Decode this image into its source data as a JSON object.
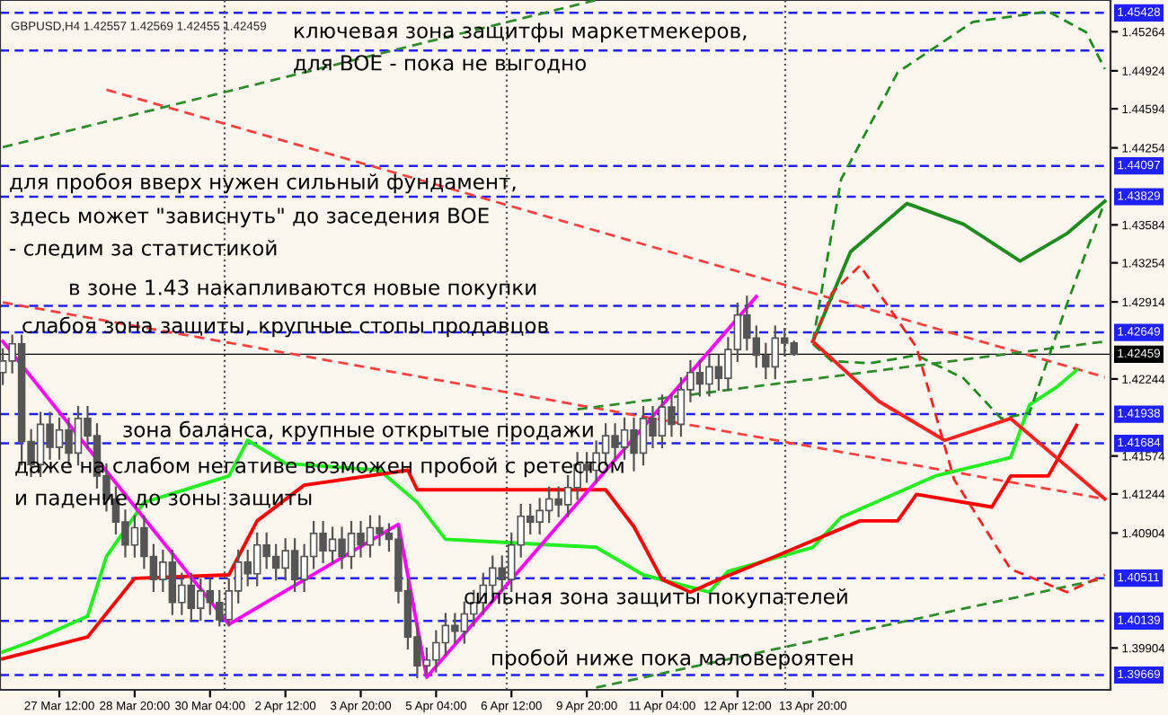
{
  "chart_data": {
    "type": "candlestick",
    "title": "GBPUSD,H4 1.42557 1.42569 1.42455 1.42459",
    "color": "#555555",
    "categories": [
      null,
      null,
      null,
      null,
      null,
      null,
      "27 Mar 12:00",
      null,
      null,
      null,
      null,
      null,
      null,
      null,
      "28 Mar 20:00",
      null,
      null,
      null,
      null,
      null,
      null,
      null,
      "30 Mar 04:00",
      null,
      null,
      null,
      null,
      null,
      null,
      null,
      "2 Apr 12:00",
      null,
      null,
      null,
      null,
      null,
      null,
      null,
      "3 Apr 20:00",
      null,
      null,
      null,
      null,
      null,
      null,
      null,
      "5 Apr 04:00",
      null,
      null,
      null,
      null,
      null,
      null,
      null,
      "6 Apr 12:00",
      null,
      null,
      null,
      null,
      null,
      null,
      null,
      "9 Apr 20:00",
      null,
      null,
      null,
      null,
      null,
      null,
      null,
      "11 Apr 04:00",
      null,
      null,
      null,
      null,
      null,
      null,
      null,
      "12 Apr 12:00",
      null,
      null,
      null,
      null,
      null,
      null,
      null,
      "13 Apr 20:00",
      null,
      null,
      null,
      null,
      null,
      null,
      null,
      null,
      null,
      null,
      null,
      null,
      null,
      null,
      null,
      null,
      null,
      null,
      null,
      null,
      null,
      null,
      null,
      null,
      null,
      null,
      null,
      null,
      null,
      null,
      null
    ],
    "ohlc": [
      [
        1.423,
        1.425,
        1.422,
        1.424
      ],
      [
        1.424,
        1.4262,
        1.423,
        1.4255
      ],
      [
        1.4255,
        1.4262,
        1.415,
        1.417
      ],
      [
        1.417,
        1.418,
        1.414,
        1.415
      ],
      [
        1.415,
        1.4195,
        1.414,
        1.4185
      ],
      [
        1.4185,
        1.4195,
        1.4155,
        1.4165
      ],
      [
        1.4165,
        1.419,
        1.4155,
        1.418
      ],
      [
        1.418,
        1.419,
        1.415,
        1.416
      ],
      [
        1.416,
        1.42,
        1.415,
        1.419
      ],
      [
        1.419,
        1.42,
        1.4165,
        1.4175
      ],
      [
        1.4175,
        1.4185,
        1.413,
        1.414
      ],
      [
        1.414,
        1.415,
        1.411,
        1.412
      ],
      [
        1.412,
        1.413,
        1.409,
        1.41
      ],
      [
        1.41,
        1.411,
        1.407,
        1.408
      ],
      [
        1.408,
        1.4105,
        1.407,
        1.4095
      ],
      [
        1.4095,
        1.4105,
        1.406,
        1.407
      ],
      [
        1.407,
        1.408,
        1.404,
        1.405
      ],
      [
        1.405,
        1.4075,
        1.404,
        1.4065
      ],
      [
        1.4065,
        1.4075,
        1.402,
        1.403
      ],
      [
        1.403,
        1.4055,
        1.402,
        1.4045
      ],
      [
        1.4045,
        1.4055,
        1.4015,
        1.4025
      ],
      [
        1.4025,
        1.405,
        1.4015,
        1.404
      ],
      [
        1.404,
        1.405,
        1.402,
        1.403
      ],
      [
        1.403,
        1.404,
        1.401,
        1.4015
      ],
      [
        1.4015,
        1.405,
        1.401,
        1.404
      ],
      [
        1.404,
        1.4075,
        1.403,
        1.4065
      ],
      [
        1.4065,
        1.4075,
        1.4045,
        1.4055
      ],
      [
        1.4055,
        1.409,
        1.4045,
        1.408
      ],
      [
        1.408,
        1.409,
        1.406,
        1.407
      ],
      [
        1.407,
        1.408,
        1.405,
        1.406
      ],
      [
        1.406,
        1.4085,
        1.405,
        1.4075
      ],
      [
        1.4075,
        1.4085,
        1.404,
        1.405
      ],
      [
        1.405,
        1.408,
        1.404,
        1.407
      ],
      [
        1.407,
        1.41,
        1.406,
        1.409
      ],
      [
        1.409,
        1.41,
        1.4065,
        1.4075
      ],
      [
        1.4075,
        1.4095,
        1.4065,
        1.4085
      ],
      [
        1.4085,
        1.4095,
        1.406,
        1.407
      ],
      [
        1.407,
        1.41,
        1.406,
        1.409
      ],
      [
        1.409,
        1.41,
        1.407,
        1.408
      ],
      [
        1.408,
        1.4105,
        1.407,
        1.4095
      ],
      [
        1.4095,
        1.4105,
        1.408,
        1.409
      ],
      [
        1.409,
        1.4098,
        1.4075,
        1.4085
      ],
      [
        1.4085,
        1.4095,
        1.403,
        1.404
      ],
      [
        1.404,
        1.405,
        1.399,
        1.4
      ],
      [
        1.4,
        1.401,
        1.3965,
        1.3975
      ],
      [
        1.3975,
        1.399,
        1.3968,
        1.398
      ],
      [
        1.398,
        1.4005,
        1.397,
        1.3995
      ],
      [
        1.3995,
        1.402,
        1.3985,
        1.401
      ],
      [
        1.401,
        1.402,
        1.3995,
        1.4005
      ],
      [
        1.4005,
        1.403,
        1.3995,
        1.402
      ],
      [
        1.402,
        1.404,
        1.401,
        1.403
      ],
      [
        1.403,
        1.4055,
        1.402,
        1.4045
      ],
      [
        1.4045,
        1.407,
        1.4035,
        1.406
      ],
      [
        1.406,
        1.407,
        1.404,
        1.405
      ],
      [
        1.405,
        1.409,
        1.404,
        1.408
      ],
      [
        1.408,
        1.4115,
        1.407,
        1.4105
      ],
      [
        1.4105,
        1.4115,
        1.409,
        1.41
      ],
      [
        1.41,
        1.412,
        1.409,
        1.411
      ],
      [
        1.411,
        1.413,
        1.41,
        1.412
      ],
      [
        1.412,
        1.413,
        1.4105,
        1.4115
      ],
      [
        1.4115,
        1.414,
        1.4105,
        1.413
      ],
      [
        1.413,
        1.416,
        1.412,
        1.415
      ],
      [
        1.415,
        1.416,
        1.4135,
        1.4145
      ],
      [
        1.4145,
        1.417,
        1.4135,
        1.416
      ],
      [
        1.416,
        1.4185,
        1.415,
        1.4175
      ],
      [
        1.4175,
        1.4185,
        1.4155,
        1.4165
      ],
      [
        1.4165,
        1.419,
        1.4155,
        1.418
      ],
      [
        1.418,
        1.419,
        1.4145,
        1.416
      ],
      [
        1.416,
        1.42,
        1.415,
        1.419
      ],
      [
        1.419,
        1.42,
        1.4165,
        1.4175
      ],
      [
        1.4175,
        1.421,
        1.4165,
        1.42
      ],
      [
        1.42,
        1.421,
        1.4175,
        1.4185
      ],
      [
        1.4185,
        1.4225,
        1.4175,
        1.4215
      ],
      [
        1.4215,
        1.424,
        1.4205,
        1.423
      ],
      [
        1.423,
        1.424,
        1.421,
        1.422
      ],
      [
        1.422,
        1.4245,
        1.421,
        1.4235
      ],
      [
        1.4235,
        1.4245,
        1.4215,
        1.4225
      ],
      [
        1.4225,
        1.426,
        1.4215,
        1.425
      ],
      [
        1.425,
        1.429,
        1.424,
        1.428
      ],
      [
        1.428,
        1.4296,
        1.425,
        1.426
      ],
      [
        1.426,
        1.427,
        1.4235,
        1.4245
      ],
      [
        1.4245,
        1.4255,
        1.4225,
        1.4235
      ],
      [
        1.4235,
        1.427,
        1.4225,
        1.426
      ],
      [
        1.426,
        1.4268,
        1.4245,
        1.42557
      ],
      [
        1.42557,
        1.42569,
        1.42455,
        1.42459
      ],
      null,
      null,
      null,
      null,
      null,
      null,
      null,
      null,
      null,
      null,
      null,
      null,
      null,
      null,
      null,
      null,
      null,
      null,
      null,
      null,
      null,
      null,
      null,
      null,
      null,
      null,
      null,
      null,
      null,
      null,
      null,
      null,
      null
    ],
    "series": [
      {
        "type": "line",
        "color": "#ff4040",
        "line_style": "dashed",
        "values": [
          null,
          null,
          null,
          null,
          null,
          null,
          null,
          null,
          null,
          null,
          null,
          1.4476,
          null,
          null,
          null,
          null,
          null,
          null,
          null,
          null,
          null,
          null,
          null,
          null,
          null,
          null,
          null,
          null,
          null,
          null,
          null,
          null,
          null,
          null,
          null,
          null,
          null,
          null,
          null,
          null,
          null,
          null,
          null,
          null,
          null,
          null,
          null,
          null,
          null,
          null,
          null,
          null,
          null,
          null,
          null,
          null,
          null,
          null,
          null,
          null,
          null,
          null,
          null,
          null,
          null,
          null,
          null,
          null,
          null,
          null,
          null,
          null,
          null,
          null,
          null,
          null,
          null,
          null,
          null,
          null,
          null,
          null,
          null,
          null,
          null,
          null,
          null,
          null,
          null,
          null,
          null,
          null,
          null,
          null,
          null,
          null,
          null,
          null,
          null,
          null,
          null,
          null,
          null,
          null,
          null,
          null,
          null,
          null,
          null,
          null,
          null,
          null,
          null,
          null,
          null,
          null,
          null,
          1.4226
        ]
      },
      {
        "type": "line",
        "color": "#ff4040",
        "line_style": "dashed",
        "values": [
          1.4291,
          null,
          null,
          null,
          null,
          null,
          null,
          null,
          null,
          null,
          null,
          null,
          null,
          null,
          null,
          null,
          null,
          null,
          null,
          null,
          null,
          null,
          null,
          null,
          null,
          null,
          null,
          null,
          null,
          null,
          null,
          null,
          null,
          null,
          null,
          null,
          null,
          null,
          null,
          null,
          null,
          null,
          null,
          null,
          null,
          null,
          null,
          null,
          null,
          null,
          null,
          null,
          null,
          null,
          null,
          null,
          null,
          null,
          null,
          null,
          null,
          null,
          null,
          null,
          null,
          null,
          null,
          null,
          null,
          null,
          null,
          null,
          null,
          null,
          null,
          null,
          null,
          null,
          null,
          null,
          null,
          null,
          null,
          null,
          null,
          null,
          null,
          null,
          null,
          null,
          null,
          null,
          null,
          null,
          null,
          null,
          null,
          null,
          null,
          null,
          null,
          null,
          null,
          null,
          null,
          null,
          null,
          null,
          null,
          null,
          null,
          null,
          null,
          null,
          null,
          null,
          null,
          1.412
        ]
      },
      {
        "type": "line",
        "color": "#2e8b2e",
        "line_style": "dashed",
        "values": [
          1.4426,
          null,
          null,
          null,
          null,
          null,
          null,
          null,
          null,
          null,
          null,
          null,
          null,
          null,
          null,
          null,
          null,
          null,
          null,
          null,
          null,
          null,
          null,
          null,
          null,
          null,
          null,
          null,
          null,
          null,
          null,
          null,
          null,
          null,
          null,
          null,
          null,
          null,
          null,
          null,
          null,
          null,
          null,
          null,
          null,
          null,
          null,
          null,
          null,
          null,
          null,
          null,
          null,
          null,
          null,
          null,
          null,
          null,
          null,
          null,
          null,
          null,
          null,
          1.4554,
          null,
          null,
          null,
          null,
          null,
          null,
          null,
          null,
          null,
          null,
          null,
          null,
          null,
          null,
          null,
          null,
          null,
          null,
          null,
          null,
          null,
          null,
          null,
          null,
          null,
          null,
          null,
          null,
          null,
          null,
          null,
          null,
          null,
          null,
          null,
          null,
          null,
          null,
          null,
          null,
          null,
          null,
          null,
          null,
          null,
          null,
          null,
          null,
          null,
          null,
          null,
          null,
          null,
          null
        ]
      },
      {
        "type": "line",
        "color": "#2e8b2e",
        "line_style": "dashed",
        "values": [
          null,
          null,
          null,
          null,
          null,
          null,
          null,
          null,
          null,
          null,
          null,
          null,
          null,
          null,
          null,
          null,
          null,
          null,
          null,
          null,
          null,
          null,
          null,
          null,
          null,
          null,
          null,
          null,
          null,
          null,
          null,
          null,
          null,
          null,
          null,
          null,
          null,
          null,
          null,
          null,
          null,
          null,
          null,
          null,
          null,
          null,
          null,
          null,
          null,
          null,
          null,
          null,
          null,
          null,
          null,
          null,
          null,
          null,
          null,
          null,
          null,
          1.4198,
          null,
          null,
          null,
          null,
          null,
          null,
          null,
          null,
          null,
          null,
          null,
          null,
          null,
          null,
          null,
          null,
          null,
          null,
          null,
          null,
          null,
          null,
          null,
          null,
          null,
          null,
          null,
          null,
          null,
          null,
          null,
          null,
          null,
          null,
          null,
          null,
          null,
          null,
          null,
          null,
          null,
          null,
          null,
          null,
          null,
          null,
          null,
          null,
          null,
          null,
          null,
          null,
          null,
          null,
          null,
          1.4257
        ]
      },
      {
        "type": "line",
        "color": "#2e8b2e",
        "line_style": "dashed",
        "values": [
          null,
          null,
          null,
          null,
          null,
          null,
          null,
          null,
          null,
          null,
          null,
          null,
          null,
          null,
          null,
          null,
          null,
          null,
          null,
          null,
          null,
          null,
          null,
          null,
          null,
          null,
          null,
          null,
          null,
          null,
          null,
          null,
          null,
          null,
          null,
          null,
          null,
          null,
          null,
          null,
          null,
          null,
          null,
          null,
          null,
          null,
          null,
          null,
          null,
          null,
          null,
          null,
          null,
          null,
          null,
          null,
          null,
          null,
          null,
          null,
          null,
          null,
          null,
          1.3956,
          null,
          null,
          null,
          null,
          null,
          null,
          null,
          null,
          null,
          null,
          null,
          null,
          null,
          null,
          null,
          null,
          null,
          null,
          null,
          null,
          null,
          null,
          null,
          null,
          null,
          null,
          null,
          null,
          null,
          null,
          null,
          null,
          null,
          null,
          null,
          null,
          null,
          null,
          null,
          null,
          null,
          null,
          null,
          null,
          null,
          null,
          null,
          null,
          null,
          null,
          null,
          null,
          null,
          1.4051
        ]
      },
      {
        "type": "line",
        "color": "#22ee22",
        "line_style": "solid",
        "values": [
          1.3987,
          null,
          null,
          1.3996,
          null,
          null,
          null,
          null,
          null,
          1.4018,
          null,
          1.407,
          null,
          null,
          null,
          1.4117,
          null,
          null,
          null,
          null,
          null,
          null,
          null,
          null,
          1.414,
          null,
          1.4171,
          null,
          null,
          null,
          1.4151,
          null,
          null,
          null,
          null,
          null,
          null,
          null,
          null,
          null,
          1.4145,
          null,
          null,
          null,
          1.4117,
          null,
          null,
          1.4085,
          null,
          null,
          null,
          null,
          null,
          null,
          null,
          null,
          null,
          null,
          null,
          null,
          null,
          null,
          null,
          1.4078,
          null,
          null,
          null,
          null,
          1.4054,
          null,
          null,
          null,
          null,
          null,
          null,
          1.4039,
          null,
          1.4057,
          null,
          null,
          null,
          null,
          null,
          null,
          null,
          null,
          1.4078,
          null,
          null,
          1.4104,
          null,
          null,
          null,
          null,
          null,
          null,
          null,
          null,
          null,
          1.414,
          null,
          null,
          null,
          null,
          null,
          null,
          null,
          1.4156,
          null,
          1.4202,
          null,
          null,
          1.4218,
          null,
          1.4232,
          null,
          null,
          null
        ]
      },
      {
        "type": "line",
        "color": "#ff0000",
        "line_style": "solid",
        "values": [
          1.3981,
          null,
          null,
          null,
          null,
          null,
          null,
          null,
          null,
          1.4,
          null,
          null,
          null,
          null,
          1.4051,
          null,
          null,
          null,
          null,
          null,
          null,
          null,
          null,
          null,
          1.4054,
          null,
          null,
          1.4101,
          null,
          null,
          null,
          null,
          1.4132,
          null,
          null,
          null,
          null,
          null,
          null,
          null,
          null,
          null,
          null,
          1.4145,
          1.4128,
          null,
          null,
          null,
          null,
          null,
          null,
          null,
          null,
          null,
          null,
          null,
          null,
          null,
          null,
          null,
          null,
          null,
          null,
          null,
          1.4128,
          null,
          null,
          1.4096,
          null,
          null,
          1.405,
          null,
          null,
          1.4039,
          null,
          null,
          1.405,
          null,
          null,
          null,
          null,
          null,
          1.407,
          null,
          null,
          null,
          null,
          null,
          null,
          null,
          null,
          1.4101,
          null,
          null,
          null,
          1.4101,
          null,
          1.4124,
          null,
          null,
          null,
          null,
          null,
          null,
          null,
          1.4113,
          null,
          1.414,
          null,
          null,
          null,
          1.414,
          null,
          null,
          1.4184,
          null,
          null,
          null
        ]
      },
      {
        "type": "line",
        "color": "#ff00ff",
        "line_style": "solid",
        "values": [
          1.4257,
          null,
          null,
          null,
          null,
          null,
          null,
          null,
          null,
          null,
          null,
          null,
          null,
          null,
          null,
          null,
          null,
          null,
          null,
          null,
          null,
          null,
          null,
          null,
          1.4011,
          null,
          null,
          null,
          null,
          null,
          null,
          null,
          null,
          null,
          null,
          null,
          null,
          null,
          null,
          null,
          null,
          null,
          1.4098,
          null,
          null,
          1.3965,
          null,
          null,
          null,
          null,
          null,
          null,
          null,
          null,
          null,
          null,
          null,
          null,
          null,
          null,
          null,
          null,
          null,
          null,
          null,
          null,
          null,
          null,
          null,
          null,
          null,
          null,
          null,
          null,
          null,
          null,
          null,
          null,
          null,
          null,
          1.4296,
          null,
          null,
          null,
          null,
          null,
          null,
          null,
          null,
          null,
          null,
          null,
          null,
          null,
          null,
          null,
          null,
          null,
          null,
          null,
          null,
          null,
          null,
          null,
          null,
          null,
          null,
          null,
          null,
          null,
          null,
          null,
          null,
          null,
          null,
          null,
          null,
          null
        ]
      },
      {
        "type": "line",
        "color": "#1e8c1e",
        "line_style": "solid",
        "values": [
          null,
          null,
          null,
          null,
          null,
          null,
          null,
          null,
          null,
          null,
          null,
          null,
          null,
          null,
          null,
          null,
          null,
          null,
          null,
          null,
          null,
          null,
          null,
          null,
          null,
          null,
          null,
          null,
          null,
          null,
          null,
          null,
          null,
          null,
          null,
          null,
          null,
          null,
          null,
          null,
          null,
          null,
          null,
          null,
          null,
          null,
          null,
          null,
          null,
          null,
          null,
          null,
          null,
          null,
          null,
          null,
          null,
          null,
          null,
          null,
          null,
          null,
          null,
          null,
          null,
          null,
          null,
          null,
          null,
          null,
          null,
          null,
          null,
          null,
          null,
          null,
          null,
          null,
          null,
          null,
          null,
          null,
          null,
          null,
          null,
          null,
          1.4257,
          null,
          null,
          null,
          1.4335,
          null,
          null,
          null,
          null,
          null,
          1.4377,
          null,
          null,
          null,
          null,
          null,
          1.4359,
          null,
          null,
          null,
          null,
          null,
          1.4327,
          null,
          null,
          null,
          null,
          1.4351,
          null,
          null,
          null,
          1.4379
        ]
      },
      {
        "type": "line",
        "color": "#1e8c1e",
        "line_style": "dashed",
        "values": [
          null,
          null,
          null,
          null,
          null,
          null,
          null,
          null,
          null,
          null,
          null,
          null,
          null,
          null,
          null,
          null,
          null,
          null,
          null,
          null,
          null,
          null,
          null,
          null,
          null,
          null,
          null,
          null,
          null,
          null,
          null,
          null,
          null,
          null,
          null,
          null,
          null,
          null,
          null,
          null,
          null,
          null,
          null,
          null,
          null,
          null,
          null,
          null,
          null,
          null,
          null,
          null,
          null,
          null,
          null,
          null,
          null,
          null,
          null,
          null,
          null,
          null,
          null,
          null,
          null,
          null,
          null,
          null,
          null,
          null,
          null,
          null,
          null,
          null,
          null,
          null,
          null,
          null,
          null,
          null,
          null,
          null,
          null,
          null,
          null,
          null,
          1.4257,
          null,
          null,
          1.4398,
          null,
          null,
          null,
          null,
          null,
          1.4491,
          null,
          null,
          null,
          null,
          null,
          null,
          null,
          1.4535,
          null,
          null,
          null,
          null,
          null,
          null,
          null,
          1.4544,
          null,
          null,
          null,
          1.4526,
          null,
          1.4494
        ]
      },
      {
        "type": "line",
        "color": "#1e8c1e",
        "line_style": "dashed",
        "values": [
          null,
          null,
          null,
          null,
          null,
          null,
          null,
          null,
          null,
          null,
          null,
          null,
          null,
          null,
          null,
          null,
          null,
          null,
          null,
          null,
          null,
          null,
          null,
          null,
          null,
          null,
          null,
          null,
          null,
          null,
          null,
          null,
          null,
          null,
          null,
          null,
          null,
          null,
          null,
          null,
          null,
          null,
          null,
          null,
          null,
          null,
          null,
          null,
          null,
          null,
          null,
          null,
          null,
          null,
          null,
          null,
          null,
          null,
          null,
          null,
          null,
          null,
          null,
          null,
          null,
          null,
          null,
          null,
          null,
          null,
          null,
          null,
          null,
          null,
          null,
          null,
          null,
          null,
          null,
          null,
          null,
          null,
          null,
          null,
          null,
          null,
          1.4255,
          null,
          1.424,
          null,
          null,
          null,
          1.4238,
          null,
          null,
          null,
          null,
          1.4245,
          null,
          null,
          null,
          null,
          1.4225,
          null,
          null,
          null,
          1.419,
          null,
          null,
          1.4195,
          null,
          null,
          null,
          1.429,
          null,
          null,
          null,
          1.4379
        ]
      },
      {
        "type": "line",
        "color": "#ff2020",
        "line_style": "solid",
        "values": [
          null,
          null,
          null,
          null,
          null,
          null,
          null,
          null,
          null,
          null,
          null,
          null,
          null,
          null,
          null,
          null,
          null,
          null,
          null,
          null,
          null,
          null,
          null,
          null,
          null,
          null,
          null,
          null,
          null,
          null,
          null,
          null,
          null,
          null,
          null,
          null,
          null,
          null,
          null,
          null,
          null,
          null,
          null,
          null,
          null,
          null,
          null,
          null,
          null,
          null,
          null,
          null,
          null,
          null,
          null,
          null,
          null,
          null,
          null,
          null,
          null,
          null,
          null,
          null,
          null,
          null,
          null,
          null,
          null,
          null,
          null,
          null,
          null,
          null,
          null,
          null,
          null,
          null,
          null,
          null,
          null,
          null,
          null,
          null,
          null,
          null,
          1.4257,
          null,
          null,
          null,
          null,
          null,
          null,
          1.4205,
          null,
          null,
          null,
          null,
          null,
          null,
          1.4171,
          null,
          null,
          null,
          null,
          null,
          null,
          1.419,
          null,
          null,
          null,
          null,
          null,
          null,
          null,
          null,
          null,
          1.412
        ]
      },
      {
        "type": "line",
        "color": "#ff2020",
        "line_style": "dashed",
        "values": [
          null,
          null,
          null,
          null,
          null,
          null,
          null,
          null,
          null,
          null,
          null,
          null,
          null,
          null,
          null,
          null,
          null,
          null,
          null,
          null,
          null,
          null,
          null,
          null,
          null,
          null,
          null,
          null,
          null,
          null,
          null,
          null,
          null,
          null,
          null,
          null,
          null,
          null,
          null,
          null,
          null,
          null,
          null,
          null,
          null,
          null,
          null,
          null,
          null,
          null,
          null,
          null,
          null,
          null,
          null,
          null,
          null,
          null,
          null,
          null,
          null,
          null,
          null,
          null,
          null,
          null,
          null,
          null,
          null,
          null,
          null,
          null,
          null,
          null,
          null,
          null,
          null,
          null,
          null,
          null,
          null,
          null,
          null,
          null,
          null,
          null,
          1.4257,
          null,
          1.4299,
          null,
          null,
          1.4323,
          null,
          null,
          null,
          null,
          null,
          1.4252,
          null,
          null,
          null,
          1.4137,
          null,
          null,
          null,
          null,
          null,
          1.4059,
          null,
          null,
          null,
          null,
          null,
          1.4039,
          null,
          null,
          null,
          1.4054
        ]
      }
    ],
    "ref_lines": [
      {
        "axis": "y",
        "value": 1.45428,
        "label": "1.45428",
        "color": "#2020ff",
        "line_style": "dashed"
      },
      {
        "axis": "y",
        "value": 1.451,
        "label": null,
        "color": "#2020ff",
        "line_style": "dashed"
      },
      {
        "axis": "y",
        "value": 1.44097,
        "label": "1.44097",
        "color": "#2020ff",
        "line_style": "dashed"
      },
      {
        "axis": "y",
        "value": 1.43829,
        "label": "1.43829",
        "color": "#2020ff",
        "line_style": "dashed"
      },
      {
        "axis": "y",
        "value": 1.4288,
        "label": null,
        "color": "#2020ff",
        "line_style": "dashed"
      },
      {
        "axis": "y",
        "value": 1.42649,
        "label": "1.42649",
        "color": "#2020ff",
        "line_style": "dashed"
      },
      {
        "axis": "y",
        "value": 1.42459,
        "label": "1.42459",
        "color": "#000000",
        "line_style": "solid"
      },
      {
        "axis": "y",
        "value": 1.41938,
        "label": "1.41938",
        "color": "#2020ff",
        "line_style": "dashed"
      },
      {
        "axis": "y",
        "value": 1.41684,
        "label": "1.41684",
        "color": "#2020ff",
        "line_style": "dashed"
      },
      {
        "axis": "y",
        "value": 1.40511,
        "label": "1.40511",
        "color": "#2020ff",
        "line_style": "dashed"
      },
      {
        "axis": "y",
        "value": 1.40139,
        "label": "1.40139",
        "color": "#2020ff",
        "line_style": "dashed"
      },
      {
        "axis": "y",
        "value": 1.39669,
        "label": "1.39669",
        "color": "#2020ff",
        "line_style": "dashed"
      }
    ],
    "annotations": [
      "ключевая зона защитфы маркетмекеров,",
      "для BOE - пока не выгодно",
      "для пробоя вверх нужен сильный фундамент,",
      "здесь может \"зависнуть\" до заседения BOE",
      "- следим за статистикой",
      "в зоне 1.43 накапливаются новые покупки",
      "слабоя зона защиты, крупные стопы продавцов",
      "зона баланса, крупные открытые продажи",
      "даже на слабом негативе возможен пробой с ретестом",
      "и падение до зоны защиты",
      "сильная зона защиты покупателей",
      "пробой ниже пока маловероятен"
    ],
    "ylim": [
      1.3954,
      1.4554
    ],
    "yticks": [
      1.45264,
      1.44924,
      1.44594,
      1.44254,
      1.43584,
      1.43254,
      1.42914,
      1.42244,
      1.41574,
      1.41244,
      1.40904,
      1.39904
    ],
    "grid": false,
    "legend": false
  }
}
